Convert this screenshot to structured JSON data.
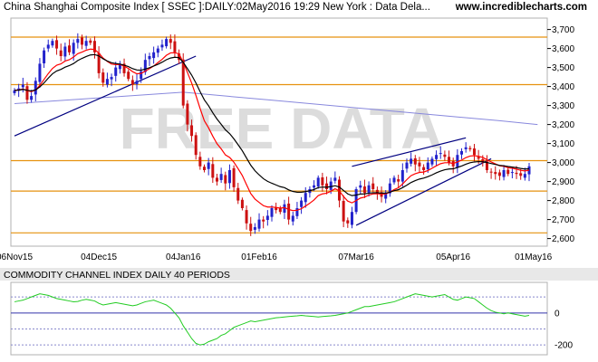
{
  "header": {
    "title": "China Shanghai Composite Index [ SSEC ]:DAILY:02May2016 19:29 New York : Data Dela...",
    "site": "www.incrediblecharts.com"
  },
  "watermark": "FREE DATA",
  "colors": {
    "up": "#2222cc",
    "down": "#cc1111",
    "ema_fast": "#ff0000",
    "ema_slow": "#000000",
    "ma_long": "#8888dd",
    "grid_orange": "#e6920f",
    "trendline": "#000080",
    "cci": "#22cc22",
    "cci_zero": "#3333aa",
    "cci_band": "#8888cc",
    "watermark": "#dcdcdc"
  },
  "chart_data": [
    {
      "type": "candlestick",
      "title": "China Shanghai Composite Index [ SSEC ]:DAILY:02May2016 19:29 New York : Data Dela...",
      "ylim": [
        2560,
        3760
      ],
      "y_ticks": [
        "3,700",
        "3,600",
        "3,500",
        "3,400",
        "3,300",
        "3,200",
        "3,100",
        "3,000",
        "2,900",
        "2,800",
        "2,700",
        "2,600"
      ],
      "y_tick_values": [
        3700,
        3600,
        3500,
        3400,
        3300,
        3200,
        3100,
        3000,
        2900,
        2800,
        2700,
        2600
      ],
      "x_ticks": [
        "06Nov15",
        "04Dec15",
        "04Jan16",
        "01Feb16",
        "07Mar16",
        "05Apr16",
        "01May16"
      ],
      "x_tick_index": [
        0,
        20,
        40,
        58,
        81,
        104,
        123
      ],
      "horizontal_levels": [
        3660,
        3410,
        3010,
        2850,
        2630
      ],
      "trendlines": [
        {
          "from": [
            0,
            3140
          ],
          "to": [
            43,
            3560
          ]
        },
        {
          "from": [
            80,
            2980
          ],
          "to": [
            107,
            3130
          ]
        },
        {
          "from": [
            81,
            2670
          ],
          "to": [
            113,
            3020
          ]
        }
      ],
      "closes": [
        3380,
        3390,
        3410,
        3330,
        3350,
        3430,
        3520,
        3590,
        3620,
        3640,
        3600,
        3560,
        3610,
        3580,
        3630,
        3650,
        3620,
        3640,
        3630,
        3580,
        3470,
        3420,
        3440,
        3450,
        3500,
        3520,
        3470,
        3440,
        3410,
        3430,
        3480,
        3540,
        3560,
        3580,
        3600,
        3620,
        3650,
        3630,
        3580,
        3540,
        3300,
        3200,
        3140,
        3040,
        2980,
        2960,
        3000,
        2920,
        2900,
        2940,
        2890,
        2960,
        2870,
        2800,
        2760,
        2680,
        2640,
        2660,
        2700,
        2690,
        2720,
        2760,
        2750,
        2740,
        2780,
        2700,
        2720,
        2760,
        2800,
        2840,
        2860,
        2880,
        2920,
        2880,
        2860,
        2900,
        2920,
        2800,
        2690,
        2680,
        2740,
        2860,
        2880,
        2840,
        2880,
        2860,
        2840,
        2820,
        2840,
        2890,
        2920,
        2900,
        2960,
        3000,
        3020,
        2990,
        2980,
        2960,
        3000,
        3020,
        3040,
        3050,
        3030,
        3000,
        2980,
        3040,
        3060,
        3080,
        3070,
        3040,
        3020,
        3000,
        2960,
        2950,
        2940,
        2930,
        2960,
        2940,
        2950,
        2940,
        2930,
        2940,
        2980
      ],
      "ema_fast": [
        3380,
        3382,
        3387,
        3378,
        3373,
        3382,
        3406,
        3437,
        3468,
        3495,
        3512,
        3519,
        3534,
        3541,
        3555,
        3573,
        3581,
        3591,
        3597,
        3595,
        3576,
        3550,
        3532,
        3518,
        3515,
        3516,
        3507,
        3495,
        3478,
        3467,
        3469,
        3481,
        3494,
        3508,
        3526,
        3543,
        3564,
        3577,
        3578,
        3572,
        3527,
        3474,
        3418,
        3354,
        3284,
        3220,
        3183,
        3139,
        3099,
        3072,
        3040,
        3027,
        3002,
        2968,
        2932,
        2884,
        2837,
        2808,
        2790,
        2773,
        2766,
        2766,
        2764,
        2760,
        2763,
        2753,
        2747,
        2749,
        2757,
        2771,
        2786,
        2803,
        2826,
        2835,
        2839,
        2849,
        2862,
        2851,
        2821,
        2797,
        2788,
        2800,
        2813,
        2818,
        2829,
        2835,
        2836,
        2834,
        2835,
        2844,
        2858,
        2867,
        2887,
        2910,
        2931,
        2941,
        2948,
        2950,
        2958,
        2970,
        2983,
        2994,
        2999,
        2999,
        2995,
        3003,
        3013,
        3026,
        3034,
        3036,
        3033,
        3027,
        3015,
        3003,
        2993,
        2983,
        2980,
        2973,
        2970,
        2965,
        2959,
        2956,
        2960
      ],
      "ema_slow": [
        3380,
        3381,
        3385,
        3380,
        3377,
        3382,
        3398,
        3419,
        3444,
        3467,
        3482,
        3490,
        3502,
        3510,
        3521,
        3537,
        3548,
        3558,
        3566,
        3568,
        3561,
        3546,
        3534,
        3525,
        3521,
        3518,
        3512,
        3505,
        3494,
        3487,
        3486,
        3492,
        3499,
        3508,
        3517,
        3528,
        3541,
        3550,
        3554,
        3552,
        3527,
        3494,
        3460,
        3419,
        3373,
        3330,
        3299,
        3262,
        3229,
        3201,
        3172,
        3152,
        3125,
        3094,
        3062,
        3024,
        2986,
        2957,
        2935,
        2915,
        2901,
        2891,
        2882,
        2873,
        2868,
        2856,
        2848,
        2844,
        2844,
        2847,
        2852,
        2858,
        2868,
        2871,
        2870,
        2873,
        2878,
        2871,
        2853,
        2835,
        2826,
        2829,
        2834,
        2835,
        2839,
        2841,
        2841,
        2839,
        2839,
        2844,
        2852,
        2857,
        2868,
        2881,
        2895,
        2905,
        2913,
        2918,
        2926,
        2935,
        2946,
        2955,
        2962,
        2966,
        2967,
        2974,
        2982,
        2991,
        2999,
        3003,
        3005,
        3004,
        3000,
        2995,
        2990,
        2985,
        2983,
        2979,
        2976,
        2973,
        2969,
        2966,
        2967
      ],
      "ma_long": [
        [
          0,
          3310
        ],
        [
          40,
          3370
        ],
        [
          60,
          3330
        ],
        [
          80,
          3290
        ],
        [
          100,
          3250
        ],
        [
          115,
          3220
        ],
        [
          124,
          3200
        ]
      ]
    },
    {
      "type": "line",
      "title": "COMMODITY CHANNEL INDEX DAILY 40 PERIODS",
      "ylim": [
        -250,
        180
      ],
      "y_ticks": [
        "0",
        "-200"
      ],
      "y_tick_values": [
        0,
        -200
      ],
      "bands": [
        100,
        -100
      ],
      "levels": [
        0,
        -200
      ],
      "values": [
        70,
        75,
        80,
        90,
        100,
        110,
        120,
        115,
        110,
        100,
        90,
        85,
        80,
        75,
        70,
        72,
        80,
        85,
        80,
        75,
        60,
        50,
        55,
        60,
        65,
        60,
        55,
        50,
        45,
        50,
        60,
        70,
        75,
        80,
        70,
        60,
        50,
        30,
        0,
        -30,
        -80,
        -120,
        -160,
        -190,
        -200,
        -195,
        -180,
        -170,
        -160,
        -140,
        -130,
        -110,
        -90,
        -80,
        -70,
        -60,
        -50,
        -55,
        -50,
        -45,
        -40,
        -35,
        -30,
        -28,
        -25,
        -22,
        -20,
        -18,
        -15,
        -18,
        -20,
        -22,
        -25,
        -22,
        -20,
        -18,
        -15,
        -10,
        -5,
        0,
        10,
        20,
        30,
        40,
        40,
        45,
        50,
        55,
        60,
        65,
        70,
        80,
        90,
        100,
        110,
        120,
        115,
        110,
        105,
        100,
        105,
        110,
        115,
        100,
        85,
        80,
        90,
        100,
        95,
        90,
        70,
        50,
        30,
        15,
        5,
        0,
        -5,
        0,
        -5,
        -10,
        -15,
        -20,
        -15
      ]
    }
  ]
}
